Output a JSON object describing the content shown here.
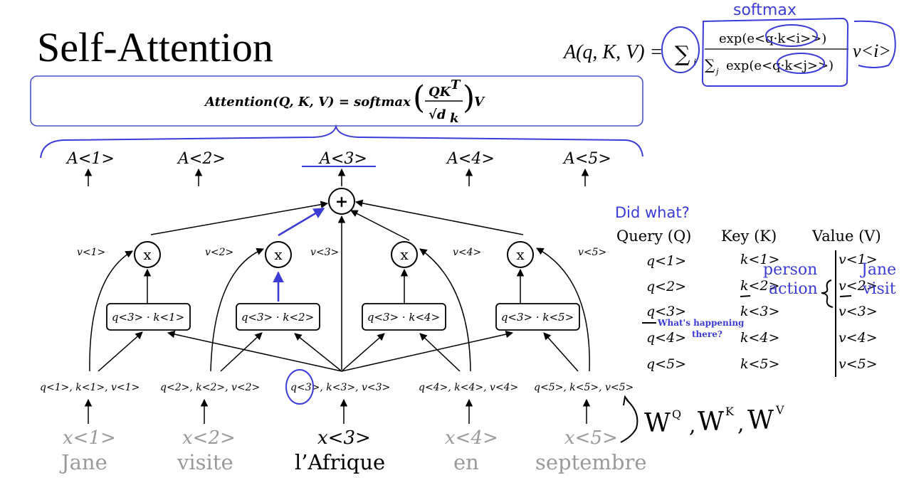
{
  "slide": {
    "title": "Self-Attention",
    "formula": {
      "lhs": "Attention(Q, K, V) = softmax",
      "numerator": "QK",
      "numerator_sup": "T",
      "denominator": "√d",
      "denominator_sub": "k",
      "tail": "V"
    },
    "top_formula": {
      "lhs": "A(q, K, V) = ",
      "sum": "∑",
      "sum_sub": "i",
      "numerator": "exp(e<q·k<i>>)",
      "denominator_sum": "∑",
      "denominator_sub": "j",
      "denominator": "exp(e<q·k<j>>)",
      "v": "v<i>"
    },
    "attention_outputs": [
      "A<1>",
      "A<2>",
      "A<3>",
      "A<4>",
      "A<5>"
    ],
    "plus_symbol": "+",
    "multiply_symbol": "x",
    "value_labels": [
      "v<1>",
      "v<2>",
      "v<3>",
      "v<4>",
      "v<5>"
    ],
    "dot_products": [
      "q<3> · k<1>",
      "q<3> · k<2>",
      "q<3> · k<4>",
      "q<3> · k<5>"
    ],
    "qkv_triples": [
      "q<1>, k<1>, v<1>",
      "q<2>, k<2>, v<2>",
      "q<3>, k<3>, v<3>",
      "q<4>, k<4>, v<4>",
      "q<5>, k<5>, v<5>"
    ],
    "inputs": [
      "x<1>",
      "x<2>",
      "x<3>",
      "x<4>",
      "x<5>"
    ],
    "words": [
      "Jane",
      "visite",
      "l’Afrique",
      "en",
      "septembre"
    ],
    "table": {
      "headers": [
        "Query (Q)",
        "Key (K)",
        "Value (V)"
      ],
      "queries": [
        "q<1>",
        "q<2>",
        "q<3>",
        "q<4>",
        "q<5>"
      ],
      "keys": [
        "k<1>",
        "k<2>",
        "k<3>",
        "k<4>",
        "k<5>"
      ],
      "values": [
        "v<1>",
        "v<2>",
        "v<3>",
        "v<4>",
        "v<5>"
      ]
    },
    "annotations": {
      "softmax": "softmax",
      "did_what": "Did what?",
      "person": "person",
      "action": "action",
      "jane": "Jane",
      "visit": "visit",
      "whats_happening_1": "What's happening",
      "whats_happening_2": "there?",
      "weights": "W",
      "weight_q": "Q",
      "weight_k": "K",
      "weight_v": "V",
      "comma": ","
    },
    "colors": {
      "ink": "#000000",
      "annotation_blue": "#3b3bd6",
      "faded_gray": "#9a9a9a",
      "box_border": "#4a52c8"
    }
  }
}
